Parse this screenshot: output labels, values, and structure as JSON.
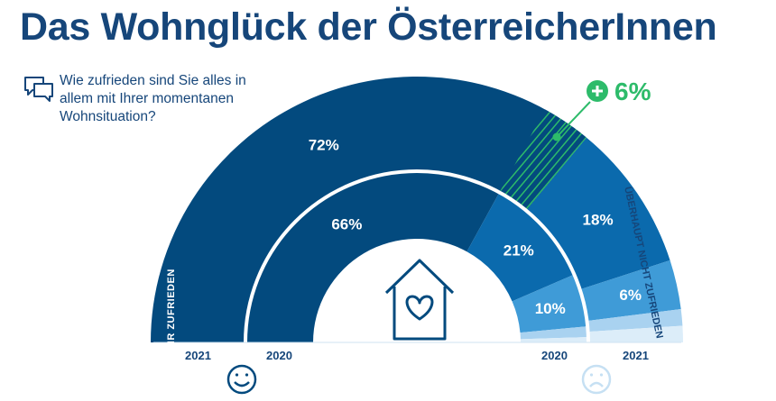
{
  "title": "Das Wohnglück der ÖsterreicherInnen",
  "question": "Wie zufrieden sind Sie alles in allem mit Ihrer momentanen Wohnsituation?",
  "labels": {
    "left_arc": "SEHR ZUFRIEDEN",
    "right_arc": "ÜBERHAUPT NICHT ZUFRIEDEN",
    "delta": "+ 6%"
  },
  "colors": {
    "title": "#16467a",
    "very_satisfied": "#034a7e",
    "satisfied": "#0b6aad",
    "medium": "#3f9bd7",
    "low": "#a9d2f0",
    "lowest": "#dcedf9",
    "delta": "#2dbb6a"
  },
  "icons": [
    "speech-bubbles-icon",
    "house-heart-icon",
    "smiley-happy-icon",
    "smiley-sad-icon"
  ],
  "chart_data": {
    "type": "donut-semicircle",
    "title": "Das Wohnglück der ÖsterreicherInnen",
    "series": [
      {
        "name": "2021",
        "values": [
          72,
          18,
          6,
          2,
          2
        ],
        "labels": [
          "72%",
          "18%",
          "6%",
          "",
          ""
        ]
      },
      {
        "name": "2020",
        "values": [
          66,
          21,
          10,
          2,
          1
        ],
        "labels": [
          "66%",
          "21%",
          "10%",
          "",
          ""
        ]
      }
    ],
    "scale": [
      "SEHR ZUFRIEDEN",
      "",
      "",
      "",
      "ÜBERHAUPT NICHT ZUFRIEDEN"
    ],
    "delta": {
      "label": "+ 6%",
      "category": "SEHR ZUFRIEDEN",
      "from": "2020",
      "to": "2021"
    }
  }
}
